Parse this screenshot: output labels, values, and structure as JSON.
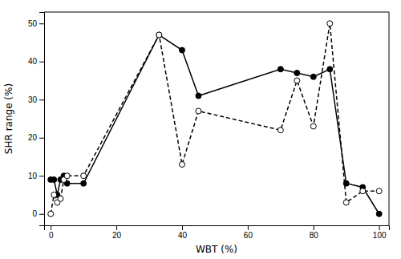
{
  "chart_data": {
    "type": "line",
    "x": [
      0,
      1,
      2,
      3,
      4,
      5,
      10,
      33,
      40,
      45,
      70,
      75,
      80,
      85,
      90,
      95,
      100
    ],
    "series": [
      {
        "color": "#000000",
        "line_style": "solid",
        "marker": "filled-circle",
        "values": [
          9,
          9,
          5,
          9,
          10,
          8,
          8,
          47,
          43,
          31,
          38,
          37,
          36,
          38,
          8,
          7,
          0
        ]
      },
      {
        "color": "#000000",
        "line_style": "dashed",
        "marker": "open-circle",
        "values": [
          0,
          5,
          3,
          4,
          9,
          10,
          10,
          47,
          13,
          27,
          22,
          35,
          23,
          50,
          3,
          6,
          6
        ]
      }
    ],
    "xlim": [
      -2,
      103
    ],
    "ylim": [
      -3,
      53
    ],
    "xticks": [
      0,
      20,
      40,
      60,
      80,
      100
    ],
    "yticks": [
      0,
      10,
      20,
      30,
      40,
      50
    ],
    "xlabel": "WBT (%)",
    "ylabel": "SHR range (%)",
    "grid": false
  }
}
